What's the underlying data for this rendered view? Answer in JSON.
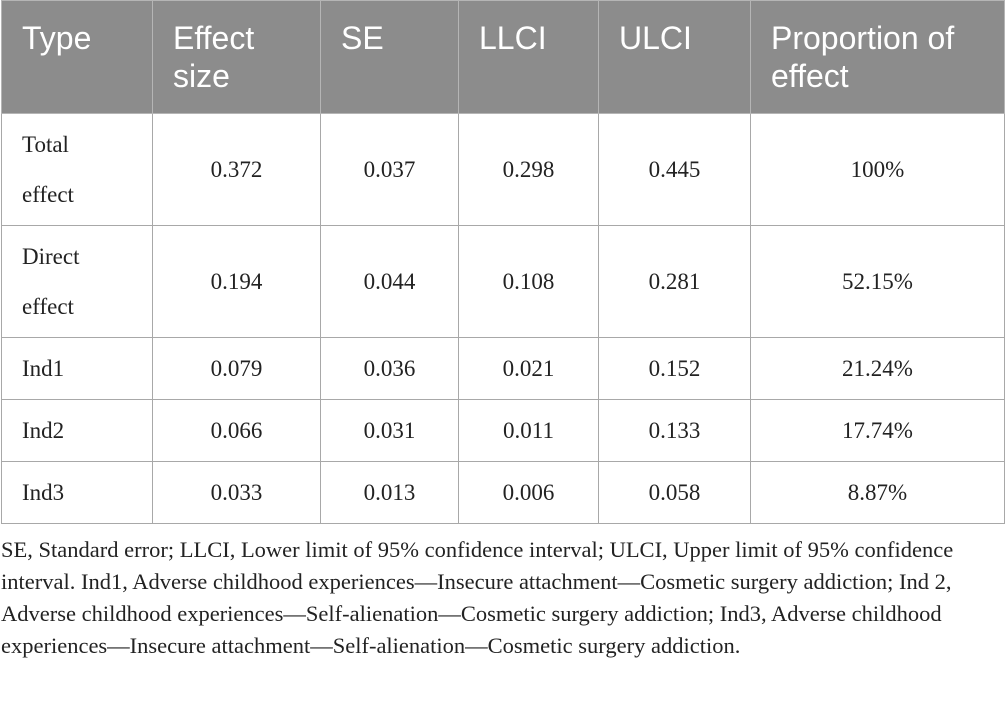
{
  "table": {
    "headers": [
      "Type",
      "Effect size",
      "SE",
      "LLCI",
      "ULCI",
      "Proportion of effect"
    ],
    "rows": [
      [
        "Total effect",
        "0.372",
        "0.037",
        "0.298",
        "0.445",
        "100%"
      ],
      [
        "Direct effect",
        "0.194",
        "0.044",
        "0.108",
        "0.281",
        "52.15%"
      ],
      [
        "Ind1",
        "0.079",
        "0.036",
        "0.021",
        "0.152",
        "21.24%"
      ],
      [
        "Ind2",
        "0.066",
        "0.031",
        "0.011",
        "0.133",
        "17.74%"
      ],
      [
        "Ind3",
        "0.033",
        "0.013",
        "0.006",
        "0.058",
        "8.87%"
      ]
    ]
  },
  "footnote": "SE, Standard error; LLCI, Lower limit of 95% confidence interval; ULCI, Upper limit of 95% confidence interval. Ind1, Adverse childhood experiences—Insecure attachment—Cosmetic surgery addiction; Ind 2, Adverse childhood experiences—Self-alienation—Cosmetic surgery addiction; Ind3, Adverse childhood experiences—Insecure attachment—Self-alienation—Cosmetic surgery addiction."
}
